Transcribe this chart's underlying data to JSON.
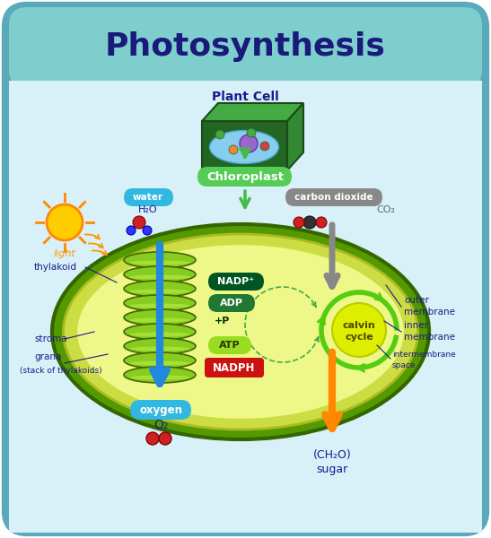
{
  "title": "Photosynthesis",
  "title_color": "#1a1a7a",
  "title_fontsize": 26,
  "bg_outer": "#5aaabb",
  "bg_header": "#7ecece",
  "bg_body": "#d8f0f8",
  "plant_cell_label": "Plant Cell",
  "chloroplast_label": "Chloroplast",
  "light_label": "light",
  "thylakoid_label": "thylakoid",
  "stroma_label": "stroma",
  "grana_label": "grana\n(stack of thylakoids)",
  "oxygen_label": "oxygen",
  "o2_label": "O₂",
  "sugar_label": "(CH₂O)",
  "sugar_label2": "sugar",
  "calvin_label1": "calvin",
  "calvin_label2": "cycle",
  "outer_mem1": "outer",
  "outer_mem2": "membrane",
  "inner_mem1": "inner",
  "inner_mem2": "membrane",
  "inter_mem1": "intermembrane",
  "inter_mem2": "space",
  "nadp_label": "NADP⁺",
  "adp_label": "ADP",
  "p_label": "+P",
  "atp_label": "ATP",
  "nadph_label": "NADPH",
  "water_label": "water",
  "h2o_label": "H₂O",
  "co2_text": "carbon dioxide",
  "co2_label": "CO₂",
  "blue_arrow": "#2288dd",
  "green_arrow": "#44bb44",
  "gray_arrow": "#888888",
  "orange_arrow": "#ff8800",
  "light_color": "#ff9900",
  "water_pill": "#30b8e0",
  "co2_pill": "#888888",
  "oxy_pill": "#30b8e0",
  "chloro_pill": "#55cc55",
  "nadp_bg": "#005522",
  "adp_bg": "#227733",
  "atp_bg": "#99dd22",
  "nadph_bg": "#cc1111",
  "sun_fill": "#ffcc00",
  "sun_edge": "#ff8800",
  "cell_dark": "#226622",
  "cell_mid": "#338833",
  "cell_light": "#44aa44",
  "chlor_outer_fill": "#559900",
  "chlor_outer_edge": "#336600",
  "chlor_mid_fill": "#ccdd44",
  "chlor_inner_fill": "#eef888",
  "grana_fill": "#88cc22",
  "grana_edge": "#446600",
  "calvin_outer": "#55cc11",
  "calvin_inner": "#ddee00",
  "label_color": "#1a1a8a"
}
